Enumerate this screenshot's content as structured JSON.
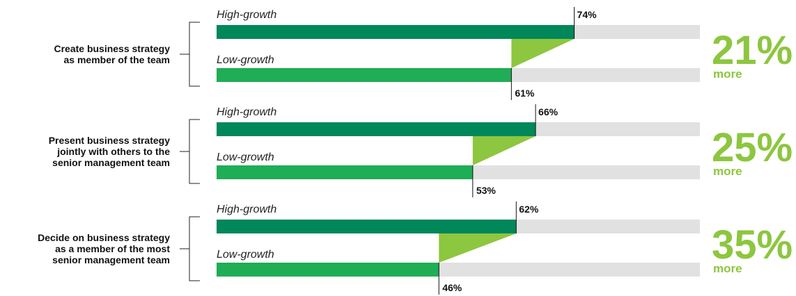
{
  "chart_data": {
    "type": "bar",
    "orientation": "horizontal",
    "xlim": [
      0,
      100
    ],
    "grid": false,
    "legend": "none",
    "colors": {
      "high_growth": "#00875a",
      "low_growth": "#1fad55",
      "track": "#e1e1e1",
      "difference": "#8dc63f",
      "text": "#111111"
    },
    "series_names": [
      "High-growth",
      "Low-growth"
    ],
    "groups": [
      {
        "category": [
          "Create business strategy",
          "as member of the team"
        ],
        "high_growth": 74,
        "low_growth": 61,
        "high_label": "74%",
        "low_label": "61%",
        "difference_value": "21%",
        "difference_word": "more"
      },
      {
        "category": [
          "Present business strategy",
          "jointly with others to the",
          "senior management team"
        ],
        "high_growth": 66,
        "low_growth": 53,
        "high_label": "66%",
        "low_label": "53%",
        "difference_value": "25%",
        "difference_word": "more"
      },
      {
        "category": [
          "Decide on business strategy",
          "as a member of the most",
          "senior management team"
        ],
        "high_growth": 62,
        "low_growth": 46,
        "high_label": "62%",
        "low_label": "46%",
        "difference_value": "35%",
        "difference_word": "more"
      }
    ]
  }
}
